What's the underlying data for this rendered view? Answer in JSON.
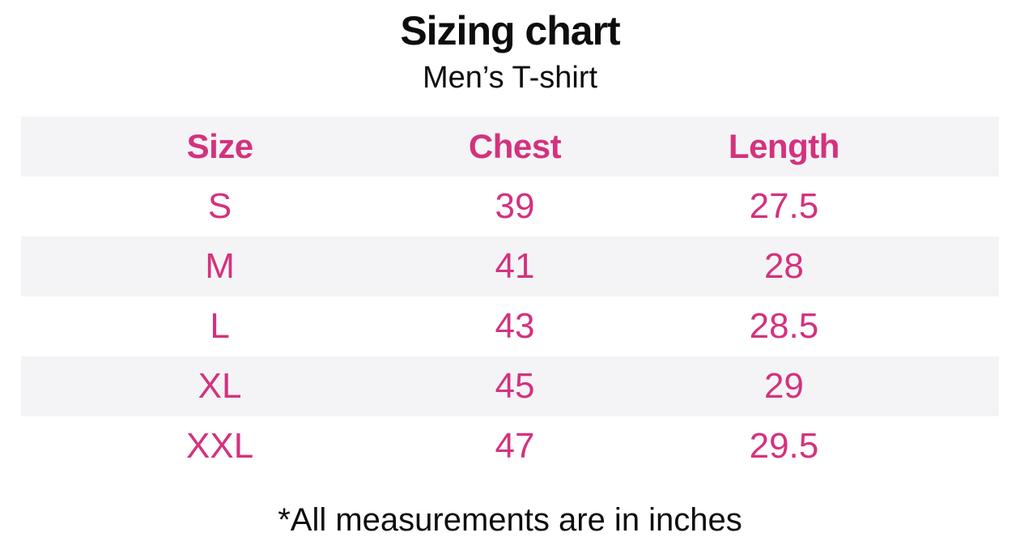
{
  "chart_data": {
    "type": "table",
    "title": "Sizing chart",
    "subtitle": "Men’s T-shirt",
    "columns": [
      "Size",
      "Chest",
      "Length"
    ],
    "rows": [
      [
        "S",
        "39",
        "27.5"
      ],
      [
        "M",
        "41",
        "28"
      ],
      [
        "L",
        "43",
        "28.5"
      ],
      [
        "XL",
        "45",
        "29"
      ],
      [
        "XXL",
        "47",
        "29.5"
      ]
    ],
    "footnote": "*All measurements are in inches",
    "units": "inches",
    "layout": {
      "row_stripe_pattern": "header and alternating rows shaded",
      "alignment": "center"
    }
  },
  "colors": {
    "accent_pink": "#d4327e",
    "row_stripe_gray": "#f4f4f6",
    "text_black": "#0d0d0d",
    "background": "#ffffff"
  }
}
